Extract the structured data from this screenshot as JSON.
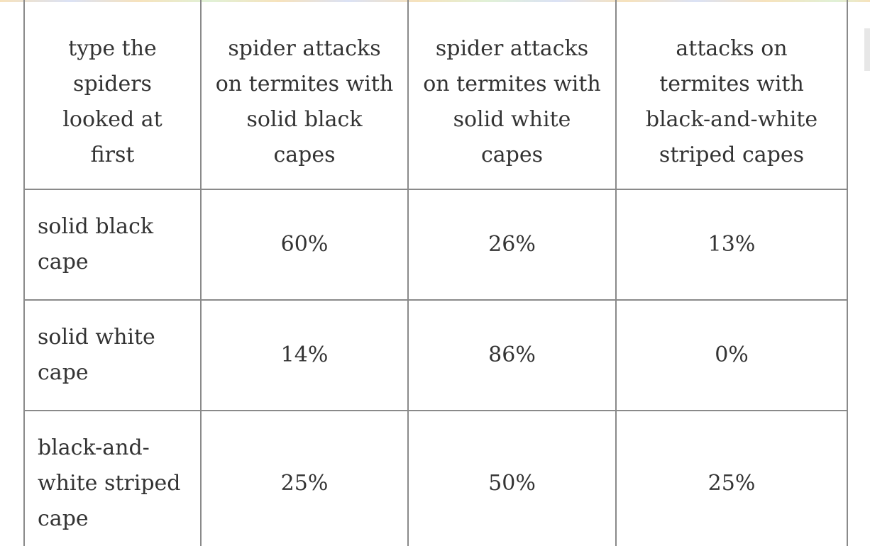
{
  "table": {
    "header": [
      "type the spiders looked at first",
      "spider attacks on termites with solid black capes",
      "spider attacks on termites with solid white capes",
      "attacks on termites with black-and-white striped capes"
    ],
    "rows": [
      {
        "label": "solid black cape",
        "values": [
          "60%",
          "26%",
          "13%"
        ]
      },
      {
        "label": "solid white cape",
        "values": [
          "14%",
          "86%",
          "0%"
        ]
      },
      {
        "label": "black-and-white striped cape",
        "values": [
          "25%",
          "50%",
          "25%"
        ]
      }
    ]
  },
  "colors": {
    "border": "#8a8a8a",
    "text": "#333333",
    "background": "#ffffff"
  }
}
